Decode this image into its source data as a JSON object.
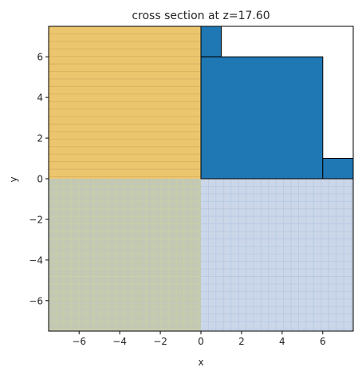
{
  "chart_data": {
    "type": "cross-section",
    "title": "cross section at z=17.60",
    "xlabel": "x",
    "ylabel": "y",
    "xlim": [
      -7.5,
      7.5
    ],
    "ylim": [
      -7.5,
      7.5
    ],
    "xticks": [
      -6,
      -4,
      -2,
      0,
      2,
      4,
      6
    ],
    "yticks": [
      -6,
      -4,
      -2,
      0,
      2,
      4,
      6
    ],
    "xtick_labels": [
      "−6",
      "−4",
      "−2",
      "0",
      "2",
      "4",
      "6"
    ],
    "ytick_labels": [
      "−6",
      "−4",
      "−2",
      "0",
      "2",
      "4",
      "6"
    ],
    "regions": [
      {
        "name": "upper-left-hatched-region",
        "x0": -7.5,
        "x1": 0,
        "y0": 0,
        "y1": 7.5,
        "fill": "#ecc66f",
        "hatch": "horizontal",
        "hatch_color": "#d9b060",
        "hatch_step": 0.37
      },
      {
        "name": "lower-left-hatched-region",
        "x0": -7.5,
        "x1": 0,
        "y0": -7.5,
        "y1": 0,
        "fill": "#c3c8b4",
        "hatch": "grid",
        "hatch_color": "#c8d0a4",
        "hatch_step": 0.37
      },
      {
        "name": "lower-right-hatched-region",
        "x0": 0,
        "x1": 7.5,
        "y0": -7.5,
        "y1": 0,
        "fill": "#cbd7e9",
        "hatch": "grid",
        "hatch_color": "#b8c9e2",
        "hatch_step": 0.37
      }
    ],
    "structures": [
      {
        "name": "structure-small-top",
        "x0": 0,
        "x1": 1,
        "y0": 6,
        "y1": 7.5
      },
      {
        "name": "structure-large",
        "x0": 0,
        "x1": 6,
        "y0": 0,
        "y1": 6
      },
      {
        "name": "structure-right-step",
        "x0": 6,
        "x1": 7.5,
        "y0": 0,
        "y1": 1
      }
    ],
    "structure_color": "#1f77b4",
    "edge_color": "#000000"
  }
}
